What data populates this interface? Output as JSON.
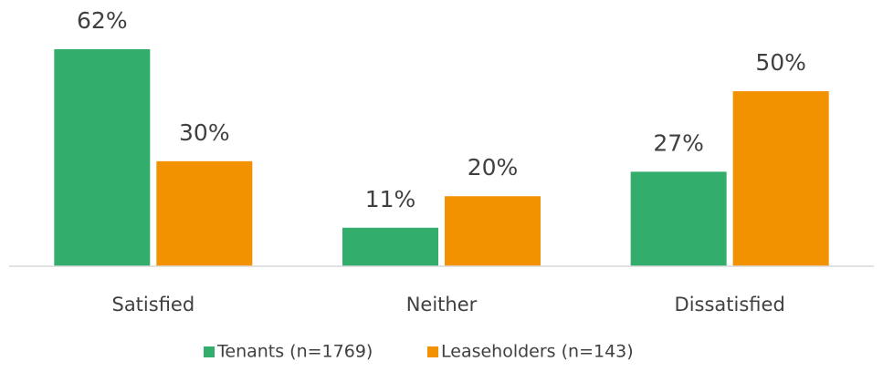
{
  "chart_data": {
    "type": "bar",
    "categories": [
      "Satisfied",
      "Neither",
      "Dissatisfied"
    ],
    "series": [
      {
        "name": "Tenants (n=1769)",
        "color": "#33ad6b",
        "values": [
          62,
          11,
          27
        ],
        "value_labels": [
          "62%",
          "11%",
          "27%"
        ]
      },
      {
        "name": "Leaseholders (n=143)",
        "color": "#f29200",
        "values": [
          30,
          20,
          50
        ],
        "value_labels": [
          "30%",
          "20%",
          "50%"
        ]
      }
    ],
    "legend": "bottom"
  }
}
